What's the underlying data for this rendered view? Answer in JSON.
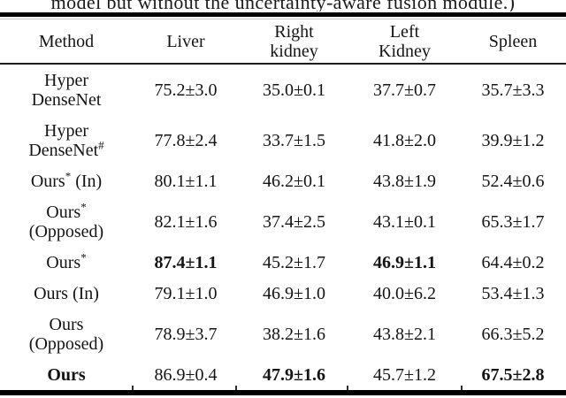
{
  "caption": "model but without the uncertainty-aware fusion module.)",
  "table": {
    "columns": [
      "Method",
      "Liver",
      "Right\nkidney",
      "Left\nKidney",
      "Spleen"
    ],
    "rows": [
      {
        "method_parts": [
          {
            "t": "Hyper\nDenseNet"
          }
        ],
        "method_bold": false,
        "values": [
          "75.2±3.0",
          "35.0±0.1",
          "37.7±0.7",
          "35.7±3.3"
        ],
        "bold": [
          false,
          false,
          false,
          false
        ]
      },
      {
        "method_parts": [
          {
            "t": "Hyper\nDenseNet"
          },
          {
            "t": "#",
            "sup": true
          }
        ],
        "method_bold": false,
        "values": [
          "77.8±2.4",
          "33.7±1.5",
          "41.8±2.0",
          "39.9±1.2"
        ],
        "bold": [
          false,
          false,
          false,
          false
        ]
      },
      {
        "method_parts": [
          {
            "t": "Ours"
          },
          {
            "t": "*",
            "sup": true
          },
          {
            "t": " (In)"
          }
        ],
        "method_bold": false,
        "values": [
          "80.1±1.1",
          "46.2±0.1",
          "43.8±1.9",
          "52.4±0.6"
        ],
        "bold": [
          false,
          false,
          false,
          false
        ]
      },
      {
        "method_parts": [
          {
            "t": "Ours"
          },
          {
            "t": "*",
            "sup": true
          },
          {
            "t": "\n(Opposed)"
          }
        ],
        "method_bold": false,
        "values": [
          "82.1±1.6",
          "37.4±2.5",
          "43.1±0.1",
          "65.3±1.7"
        ],
        "bold": [
          false,
          false,
          false,
          false
        ]
      },
      {
        "method_parts": [
          {
            "t": "Ours"
          },
          {
            "t": "*",
            "sup": true
          }
        ],
        "method_bold": false,
        "values": [
          "87.4±1.1",
          "45.2±1.7",
          "46.9±1.1",
          "64.4±0.2"
        ],
        "bold": [
          true,
          false,
          true,
          false
        ]
      },
      {
        "method_parts": [
          {
            "t": "Ours (In)"
          }
        ],
        "method_bold": false,
        "values": [
          "79.1±1.0",
          "46.9±1.0",
          "40.0±6.2",
          "53.4±1.3"
        ],
        "bold": [
          false,
          false,
          false,
          false
        ]
      },
      {
        "method_parts": [
          {
            "t": "Ours\n(Opposed)"
          }
        ],
        "method_bold": false,
        "values": [
          "78.9±3.7",
          "38.2±1.6",
          "43.8±2.1",
          "66.3±5.2"
        ],
        "bold": [
          false,
          false,
          false,
          false
        ]
      },
      {
        "method_parts": [
          {
            "t": "Ours"
          }
        ],
        "method_bold": true,
        "values": [
          "86.9±0.4",
          "47.9±1.6",
          "45.7±1.2",
          "67.5±2.8"
        ],
        "bold": [
          false,
          true,
          false,
          true
        ]
      }
    ]
  },
  "colors": {
    "rule": "#000000",
    "text": "#141414"
  }
}
